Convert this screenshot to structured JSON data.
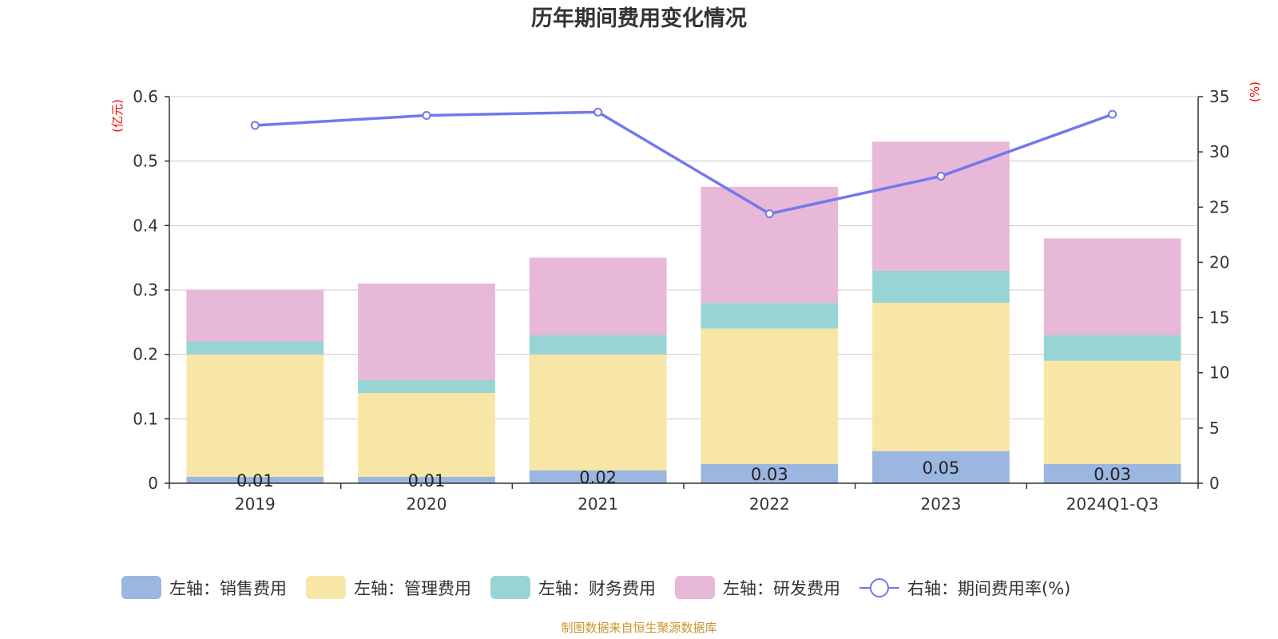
{
  "chart_data": {
    "type": "bar",
    "title": "历年期间费用变化情况",
    "categories": [
      "2019",
      "2020",
      "2021",
      "2022",
      "2023",
      "2024Q1-Q3"
    ],
    "left_axis": {
      "unit": "(亿元)",
      "ylim": [
        0,
        0.6
      ],
      "ticks": [
        "0",
        "0.1",
        "0.2",
        "0.3",
        "0.4",
        "0.5",
        "0.6"
      ]
    },
    "right_axis": {
      "unit": "(%)",
      "ylim": [
        0,
        35
      ],
      "ticks": [
        "0",
        "5",
        "10",
        "15",
        "20",
        "25",
        "30",
        "35"
      ]
    },
    "series": [
      {
        "name": "左轴：销售费用",
        "kind": "bar",
        "color": "#9bb6e0",
        "values": [
          0.01,
          0.01,
          0.02,
          0.03,
          0.05,
          0.03
        ],
        "labels": [
          "0.01",
          "0.01",
          "0.02",
          "0.03",
          "0.05",
          "0.03"
        ]
      },
      {
        "name": "左轴：管理费用",
        "kind": "bar",
        "color": "#f7e6a6",
        "values": [
          0.19,
          0.13,
          0.18,
          0.21,
          0.23,
          0.16
        ]
      },
      {
        "name": "左轴：财务费用",
        "kind": "bar",
        "color": "#98d4d4",
        "values": [
          0.02,
          0.02,
          0.03,
          0.04,
          0.05,
          0.04
        ]
      },
      {
        "name": "左轴：研发费用",
        "kind": "bar",
        "color": "#e7b8d8",
        "values": [
          0.08,
          0.15,
          0.12,
          0.18,
          0.2,
          0.15
        ]
      },
      {
        "name": "右轴：期间费用率(%)",
        "kind": "line",
        "color": "#7378ec",
        "values": [
          32.4,
          33.3,
          33.6,
          24.4,
          27.8,
          33.4
        ]
      }
    ],
    "grid": true,
    "legend_position": "bottom"
  },
  "source_note": "制图数据来自恒生聚源数据库"
}
